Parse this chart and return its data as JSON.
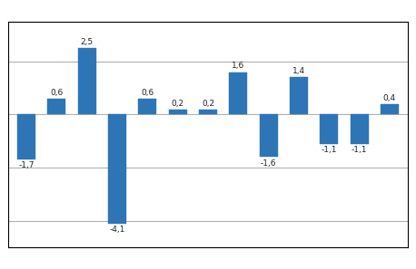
{
  "values": [
    -1.7,
    0.6,
    2.5,
    -4.1,
    0.6,
    0.2,
    0.2,
    1.6,
    -1.6,
    1.4,
    -1.1,
    -1.1,
    0.4
  ],
  "bar_color": "#2E75B6",
  "bar_edge_color": "#2E75B6",
  "ylim": [
    -5.0,
    3.5
  ],
  "background_color": "#ffffff",
  "grid_color": "#aaaaaa",
  "label_fontsize": 6.5,
  "label_color": "#222222",
  "frame_color": "#000000"
}
